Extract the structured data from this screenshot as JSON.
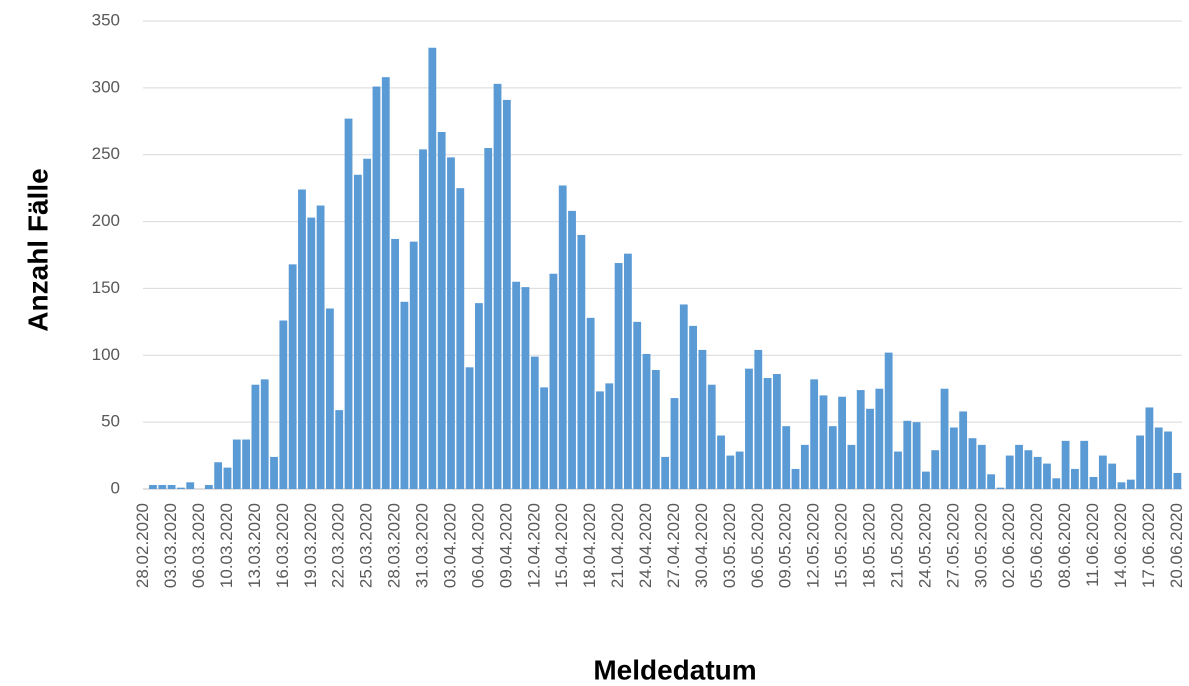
{
  "chart_data": {
    "type": "bar",
    "y_label": "Anzahl Fälle",
    "x_label": "Meldedatum",
    "categories": [
      "28.02.2020",
      null,
      null,
      "03.03.2020",
      null,
      null,
      "06.03.2020",
      null,
      null,
      "10.03.2020",
      null,
      null,
      "13.03.2020",
      null,
      null,
      "16.03.2020",
      null,
      null,
      "19.03.2020",
      null,
      null,
      "22.03.2020",
      null,
      null,
      "25.03.2020",
      null,
      null,
      "28.03.2020",
      null,
      null,
      "31.03.2020",
      null,
      null,
      "03.04.2020",
      null,
      null,
      "06.04.2020",
      null,
      null,
      "09.04.2020",
      null,
      null,
      "12.04.2020",
      null,
      null,
      "15.04.2020",
      null,
      null,
      "18.04.2020",
      null,
      null,
      "21.04.2020",
      null,
      null,
      "24.04.2020",
      null,
      null,
      "27.04.2020",
      null,
      null,
      "30.04.2020",
      null,
      null,
      "03.05.2020",
      null,
      null,
      "06.05.2020",
      null,
      null,
      "09.05.2020",
      null,
      null,
      "12.05.2020",
      null,
      null,
      "15.05.2020",
      null,
      null,
      "18.05.2020",
      null,
      null,
      "21.05.2020",
      null,
      null,
      "24.05.2020",
      null,
      null,
      "27.05.2020",
      null,
      null,
      "30.05.2020",
      null,
      null,
      "02.06.2020",
      null,
      null,
      "05.06.2020",
      null,
      null,
      "08.06.2020",
      null,
      null,
      "11.06.2020",
      null,
      null,
      "14.06.2020",
      null,
      null,
      "17.06.2020",
      null,
      null,
      "20.06.2020"
    ],
    "values": [
      0,
      3,
      3,
      3,
      1,
      5,
      0,
      3,
      20,
      16,
      37,
      37,
      78,
      82,
      24,
      126,
      168,
      224,
      203,
      212,
      135,
      59,
      277,
      235,
      247,
      301,
      308,
      187,
      140,
      185,
      254,
      330,
      267,
      248,
      225,
      91,
      139,
      255,
      303,
      291,
      155,
      151,
      99,
      76,
      161,
      227,
      208,
      190,
      128,
      73,
      79,
      169,
      176,
      125,
      101,
      89,
      24,
      68,
      138,
      122,
      104,
      78,
      40,
      25,
      28,
      90,
      104,
      83,
      86,
      47,
      15,
      33,
      82,
      70,
      47,
      69,
      33,
      74,
      60,
      75,
      102,
      28,
      51,
      50,
      13,
      29,
      75,
      46,
      58,
      38,
      33,
      11,
      1,
      25,
      33,
      29,
      24,
      19,
      8,
      36,
      15,
      36,
      9,
      25,
      19,
      5,
      7,
      40,
      61,
      46,
      43,
      12
    ],
    "color": "#5b9bd5",
    "ylim": [
      0,
      350
    ],
    "yticks": [
      0,
      50,
      100,
      150,
      200,
      250,
      300,
      350
    ],
    "grid": true
  }
}
